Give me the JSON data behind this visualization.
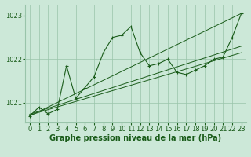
{
  "background_color": "#cce8d8",
  "plot_bg_color": "#cce8d8",
  "grid_color": "#99c4aa",
  "line_color": "#1a5c1a",
  "xlabel": "Graphe pression niveau de la mer (hPa)",
  "xlabel_fontsize": 7,
  "tick_fontsize": 6,
  "xlim": [
    -0.5,
    23.5
  ],
  "ylim": [
    1020.55,
    1023.25
  ],
  "yticks": [
    1021,
    1022,
    1023
  ],
  "xticks": [
    0,
    1,
    2,
    3,
    4,
    5,
    6,
    7,
    8,
    9,
    10,
    11,
    12,
    13,
    14,
    15,
    16,
    17,
    18,
    19,
    20,
    21,
    22,
    23
  ],
  "main_y": [
    1020.7,
    1020.9,
    1020.75,
    1020.85,
    1021.85,
    1021.1,
    1021.35,
    1021.6,
    1022.15,
    1022.5,
    1022.55,
    1022.75,
    1022.15,
    1021.85,
    1021.9,
    1022.0,
    1021.7,
    1021.65,
    1021.75,
    1021.85,
    1022.0,
    1022.05,
    1022.5,
    1023.05
  ],
  "trend_lines": [
    {
      "x0": 0,
      "y0": 1020.72,
      "x1": 23,
      "y1": 1022.15
    },
    {
      "x0": 0,
      "y0": 1020.74,
      "x1": 23,
      "y1": 1022.3
    },
    {
      "x0": 0,
      "y0": 1020.7,
      "x1": 23,
      "y1": 1023.05
    }
  ]
}
